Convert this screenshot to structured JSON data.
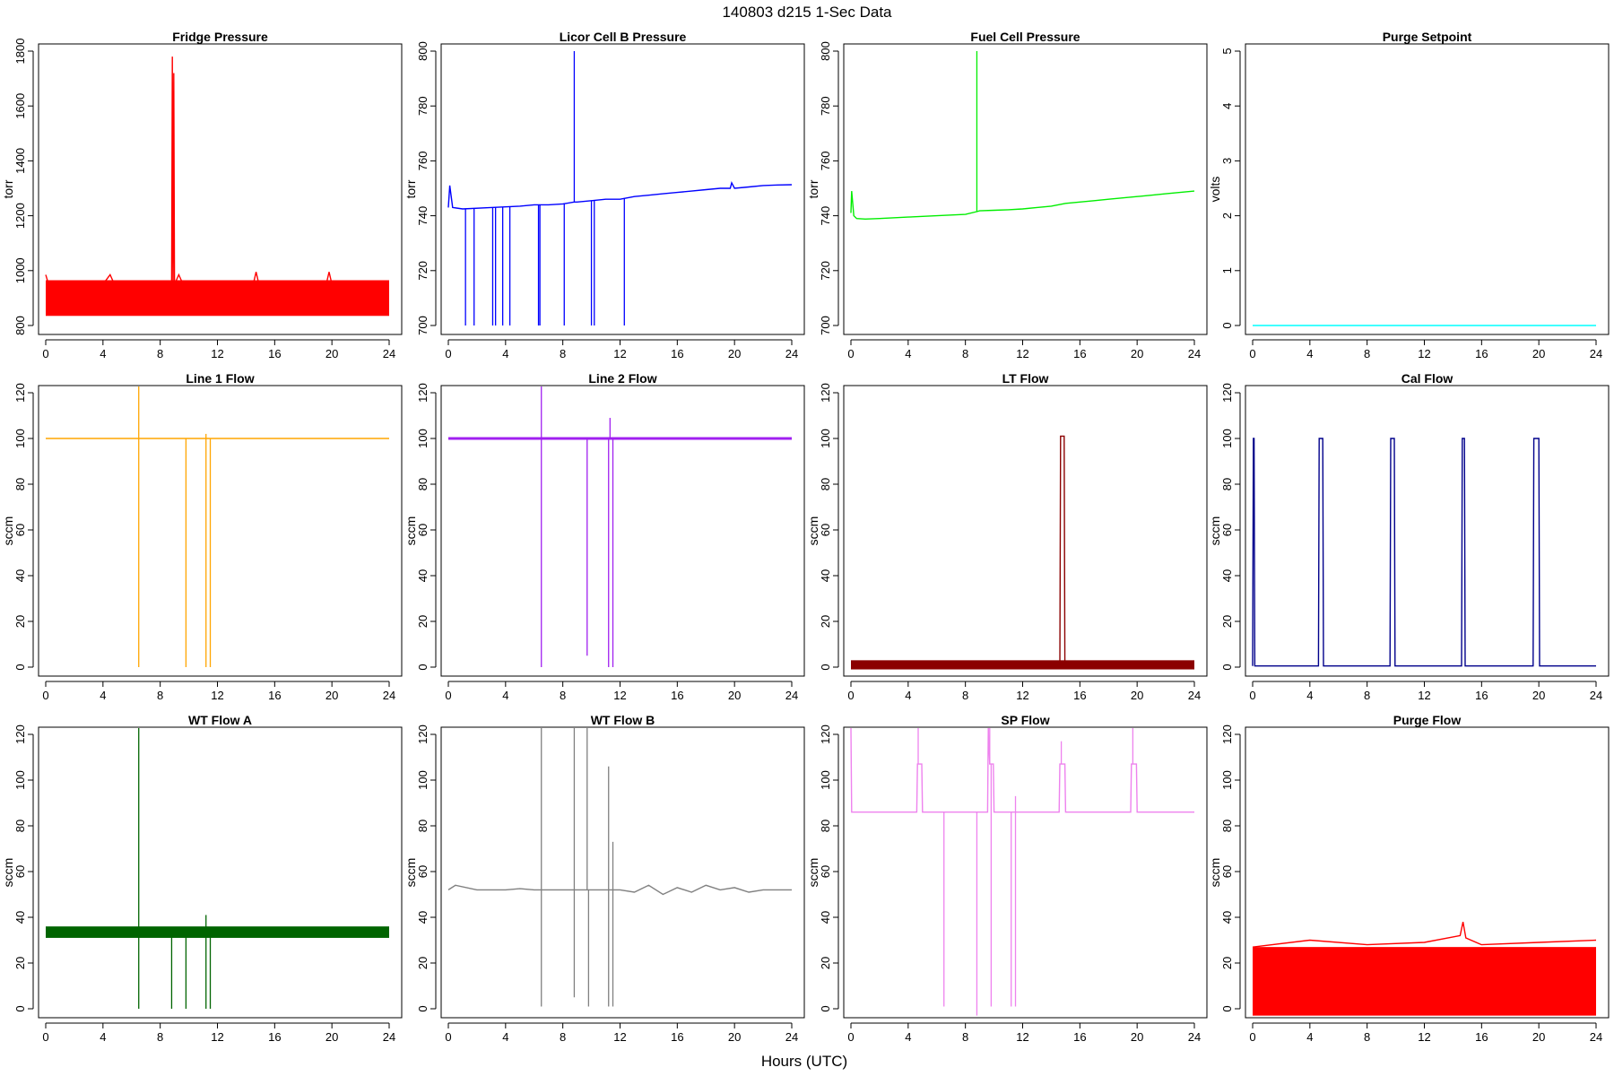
{
  "figure_title": "140803   d215   1-Sec Data",
  "x_axis_label": "Hours (UTC)",
  "chart_data": [
    {
      "id": "fridge",
      "type": "line",
      "title": "Fridge Pressure",
      "ylabel": "torr",
      "color": "#ff0000",
      "xlim": [
        0,
        24
      ],
      "ylim": [
        800,
        1800
      ],
      "xticks": [
        0,
        4,
        8,
        12,
        16,
        20,
        24
      ],
      "yticks": [
        800,
        1000,
        1200,
        1400,
        1600,
        1800
      ],
      "band": {
        "x": [
          0,
          24
        ],
        "low": 835,
        "high": 965
      },
      "line": {
        "x": [
          0,
          0.2,
          1,
          4,
          4.5,
          4.8,
          5,
          8,
          8.8,
          8.85,
          8.9,
          8.95,
          9,
          9.3,
          9.6,
          10,
          14.5,
          14.7,
          14.9,
          19.6,
          19.8,
          20,
          24
        ],
        "y": [
          985,
          950,
          950,
          950,
          985,
          950,
          950,
          950,
          950,
          1780,
          950,
          1720,
          950,
          985,
          950,
          950,
          950,
          995,
          950,
          950,
          995,
          950,
          950
        ]
      }
    },
    {
      "id": "licor",
      "type": "line",
      "title": "Licor Cell B Pressure",
      "ylabel": "torr",
      "color": "#0000ff",
      "xlim": [
        0,
        24
      ],
      "ylim": [
        700,
        800
      ],
      "xticks": [
        0,
        4,
        8,
        12,
        16,
        20,
        24
      ],
      "yticks": [
        700,
        720,
        740,
        760,
        780,
        800
      ],
      "line": {
        "x": [
          0,
          0.1,
          0.3,
          1,
          3,
          5,
          6,
          7,
          8,
          8.8,
          9,
          10,
          11,
          12,
          13,
          14,
          15,
          16,
          17,
          18,
          19,
          19.7,
          19.8,
          20,
          21,
          22,
          23,
          24
        ],
        "y": [
          743,
          751,
          743,
          742.5,
          743,
          743.5,
          744,
          744,
          744.3,
          745,
          745,
          745.5,
          746,
          746,
          747,
          747.5,
          748,
          748.5,
          749,
          749.5,
          750,
          750,
          752,
          750,
          750.5,
          751,
          751.2,
          751.3
        ]
      },
      "spikes": {
        "x": [
          1.2,
          1.8,
          3.1,
          3.3,
          3.8,
          4.3,
          6.3,
          6.4,
          8.1,
          10,
          10.2,
          12.3
        ],
        "to": [
          700,
          700,
          700,
          700,
          700,
          700,
          700,
          700,
          700,
          700,
          700,
          700
        ]
      },
      "upspikes": {
        "x": [
          8.8
        ],
        "to": [
          800
        ]
      }
    },
    {
      "id": "fuel",
      "type": "line",
      "title": "Fuel Cell Pressure",
      "ylabel": "torr",
      "color": "#00ee00",
      "xlim": [
        0,
        24
      ],
      "ylim": [
        700,
        800
      ],
      "xticks": [
        0,
        4,
        8,
        12,
        16,
        20,
        24
      ],
      "yticks": [
        700,
        720,
        740,
        760,
        780,
        800
      ],
      "line": {
        "x": [
          0,
          0.05,
          0.2,
          0.4,
          1,
          2,
          4,
          6,
          8,
          8.8,
          9,
          10,
          11,
          12,
          13,
          14,
          15,
          16,
          17,
          18,
          19,
          20,
          21,
          22,
          23,
          24
        ],
        "y": [
          741,
          749,
          740,
          739,
          738.8,
          739,
          739.5,
          740,
          740.5,
          741.5,
          741.8,
          742,
          742.2,
          742.5,
          743,
          743.5,
          744.5,
          745,
          745.5,
          746,
          746.5,
          747,
          747.5,
          748,
          748.5,
          749
        ]
      },
      "upspikes": {
        "x": [
          8.8
        ],
        "to": [
          800
        ]
      }
    },
    {
      "id": "purge_sp",
      "type": "line",
      "title": "Purge Setpoint",
      "ylabel": "volts",
      "color": "#00ffff",
      "xlim": [
        0,
        24
      ],
      "ylim": [
        0,
        5
      ],
      "xticks": [
        0,
        4,
        8,
        12,
        16,
        20,
        24
      ],
      "yticks": [
        0,
        1,
        2,
        3,
        4,
        5
      ],
      "line": {
        "x": [
          0,
          24
        ],
        "y": [
          0,
          0
        ]
      }
    },
    {
      "id": "line1",
      "type": "line",
      "title": "Line 1 Flow",
      "ylabel": "sccm",
      "color": "#ffa500",
      "xlim": [
        0,
        24
      ],
      "ylim": [
        0,
        120
      ],
      "xticks": [
        0,
        4,
        8,
        12,
        16,
        20,
        24
      ],
      "yticks": [
        0,
        20,
        40,
        60,
        80,
        100,
        120
      ],
      "line": {
        "x": [
          0,
          24
        ],
        "y": [
          100,
          100
        ]
      },
      "spikes": {
        "x": [
          6.5,
          9.8,
          11.2,
          11.5
        ],
        "to": [
          0,
          0,
          0,
          0
        ]
      },
      "upspikes": {
        "x": [
          6.5,
          11.2
        ],
        "to": [
          130,
          102
        ]
      }
    },
    {
      "id": "line2",
      "type": "line",
      "title": "Line 2 Flow",
      "ylabel": "sccm",
      "color": "#a020f0",
      "xlim": [
        0,
        24
      ],
      "ylim": [
        0,
        120
      ],
      "xticks": [
        0,
        4,
        8,
        12,
        16,
        20,
        24
      ],
      "yticks": [
        0,
        20,
        40,
        60,
        80,
        100,
        120
      ],
      "line": {
        "x": [
          0,
          24
        ],
        "y": [
          100,
          100
        ]
      },
      "spikes": {
        "x": [
          6.5,
          9.7,
          11.2,
          11.5
        ],
        "to": [
          0,
          5,
          0,
          0
        ]
      },
      "upspikes": {
        "x": [
          6.5,
          11.3
        ],
        "to": [
          130,
          109
        ]
      }
    },
    {
      "id": "lt",
      "type": "line",
      "title": "LT Flow",
      "ylabel": "sccm",
      "color": "#8b0000",
      "xlim": [
        0,
        24
      ],
      "ylim": [
        0,
        120
      ],
      "xticks": [
        0,
        4,
        8,
        12,
        16,
        20,
        24
      ],
      "yticks": [
        0,
        20,
        40,
        60,
        80,
        100,
        120
      ],
      "band": {
        "x": [
          0,
          24
        ],
        "low": -1,
        "high": 3
      },
      "line": {
        "x": [
          0,
          14.6,
          14.65,
          14.9,
          14.95,
          24
        ],
        "y": [
          1,
          1,
          101,
          101,
          1,
          1
        ]
      }
    },
    {
      "id": "cal",
      "type": "line",
      "title": "Cal Flow",
      "ylabel": "sccm",
      "color": "#00008b",
      "xlim": [
        0,
        24
      ],
      "ylim": [
        0,
        120
      ],
      "xticks": [
        0,
        4,
        8,
        12,
        16,
        20,
        24
      ],
      "yticks": [
        0,
        20,
        40,
        60,
        80,
        100,
        120
      ],
      "line": {
        "x": [
          0,
          0.05,
          0.1,
          0.15,
          4.6,
          4.65,
          4.9,
          4.95,
          9.6,
          9.65,
          9.9,
          9.95,
          14.6,
          14.65,
          14.8,
          14.85,
          19.6,
          19.65,
          20,
          20.05,
          24
        ],
        "y": [
          0.5,
          100,
          100,
          0.5,
          0.5,
          100,
          100,
          0.5,
          0.5,
          100,
          100,
          0.5,
          0.5,
          100,
          100,
          0.5,
          0.5,
          100,
          100,
          0.5,
          0.5
        ]
      }
    },
    {
      "id": "wta",
      "type": "line",
      "title": "WT Flow A",
      "ylabel": "sccm",
      "color": "#006400",
      "xlim": [
        0,
        24
      ],
      "ylim": [
        0,
        120
      ],
      "xticks": [
        0,
        4,
        8,
        12,
        16,
        20,
        24
      ],
      "yticks": [
        0,
        20,
        40,
        60,
        80,
        100,
        120
      ],
      "band": {
        "x": [
          0,
          24
        ],
        "low": 31,
        "high": 36
      },
      "line": {
        "x": [
          0,
          24
        ],
        "y": [
          33.5,
          33.5
        ]
      },
      "spikes": {
        "x": [
          6.5,
          8.8,
          9.8,
          11.2,
          11.5
        ],
        "to": [
          0,
          0,
          0,
          0,
          0
        ]
      },
      "upspikes": {
        "x": [
          6.5,
          11.2
        ],
        "to": [
          127,
          41
        ]
      }
    },
    {
      "id": "wtb",
      "type": "line",
      "title": "WT Flow B",
      "ylabel": "sccm",
      "color": "#808080",
      "xlim": [
        0,
        24
      ],
      "ylim": [
        0,
        120
      ],
      "xticks": [
        0,
        4,
        8,
        12,
        16,
        20,
        24
      ],
      "yticks": [
        0,
        20,
        40,
        60,
        80,
        100,
        120
      ],
      "line": {
        "x": [
          0,
          0.5,
          2,
          4,
          5,
          6,
          8,
          10,
          12,
          13,
          14,
          15,
          16,
          17,
          18,
          19,
          20,
          21,
          22,
          23,
          24
        ],
        "y": [
          52,
          54,
          52,
          52,
          52.5,
          52,
          52,
          52,
          52,
          51,
          54,
          50,
          53,
          51,
          54,
          52,
          53,
          51,
          52,
          52,
          52
        ]
      },
      "spikes": {
        "x": [
          6.5,
          8.8,
          9.8,
          11.2,
          11.5
        ],
        "to": [
          1,
          5,
          1,
          1,
          1
        ]
      },
      "upspikes": {
        "x": [
          6.5,
          8.8,
          9.7,
          11.2,
          11.5
        ],
        "to": [
          125,
          129,
          127,
          106,
          73
        ]
      }
    },
    {
      "id": "sp",
      "type": "line",
      "title": "SP Flow",
      "ylabel": "sccm",
      "color": "#ee82ee",
      "xlim": [
        0,
        24
      ],
      "ylim": [
        0,
        120
      ],
      "xticks": [
        0,
        4,
        8,
        12,
        16,
        20,
        24
      ],
      "yticks": [
        0,
        20,
        40,
        60,
        80,
        100,
        120
      ],
      "line": {
        "x": [
          0,
          0.05,
          0.2,
          4.6,
          4.65,
          4.95,
          5,
          9.55,
          9.6,
          9.7,
          9.95,
          10,
          14.55,
          14.6,
          14.95,
          15,
          19.55,
          19.6,
          19.95,
          20,
          24
        ],
        "y": [
          130,
          86,
          86,
          86,
          107,
          107,
          86,
          86,
          130,
          107,
          107,
          86,
          86,
          107,
          107,
          86,
          86,
          107,
          107,
          86,
          86
        ]
      },
      "spikes": {
        "x": [
          6.5,
          8.8,
          9.8,
          11.2,
          11.5
        ],
        "to": [
          1,
          -3,
          1,
          1,
          1
        ]
      },
      "upspikes": {
        "x": [
          4.7,
          9.7,
          14.7,
          19.7,
          11.5
        ],
        "to": [
          130,
          130,
          117,
          130,
          93
        ]
      }
    },
    {
      "id": "purge",
      "type": "line",
      "title": "Purge Flow",
      "ylabel": "sccm",
      "color": "#ff0000",
      "xlim": [
        0,
        24
      ],
      "ylim": [
        0,
        120
      ],
      "xticks": [
        0,
        4,
        8,
        12,
        16,
        20,
        24
      ],
      "yticks": [
        0,
        20,
        40,
        60,
        80,
        100,
        120
      ],
      "band": {
        "x": [
          0,
          24
        ],
        "low": -3,
        "high": 27
      },
      "line": {
        "x": [
          0,
          4,
          8,
          12,
          14.5,
          14.7,
          14.9,
          16,
          20,
          24
        ],
        "y": [
          27,
          30,
          28,
          29,
          32,
          38,
          31,
          28,
          29,
          30
        ]
      }
    }
  ]
}
